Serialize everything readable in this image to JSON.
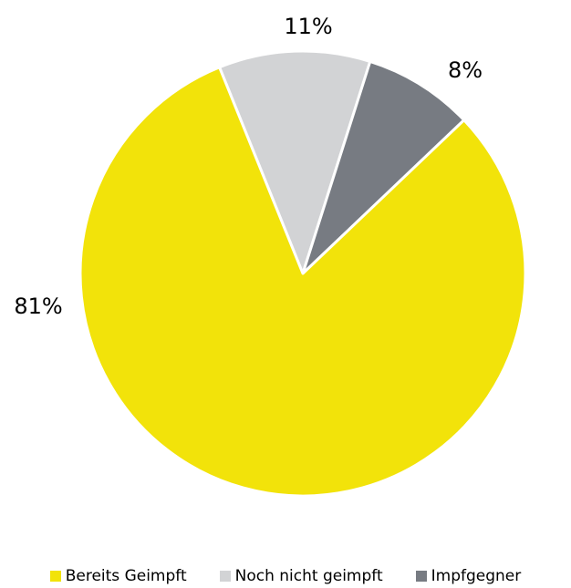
{
  "chart_data": {
    "type": "pie",
    "categories": [
      "Bereits Geimpft",
      "Noch nicht geimpft",
      "Impfgegner"
    ],
    "values": [
      81,
      11,
      8
    ],
    "labels": [
      "81%",
      "11%",
      "8%"
    ],
    "colors": [
      "#f2e30a",
      "#d2d3d5",
      "#777b82"
    ],
    "legend_position": "bottom",
    "start_direction": "clockwise from the left slice boundary at about -22 degrees"
  }
}
